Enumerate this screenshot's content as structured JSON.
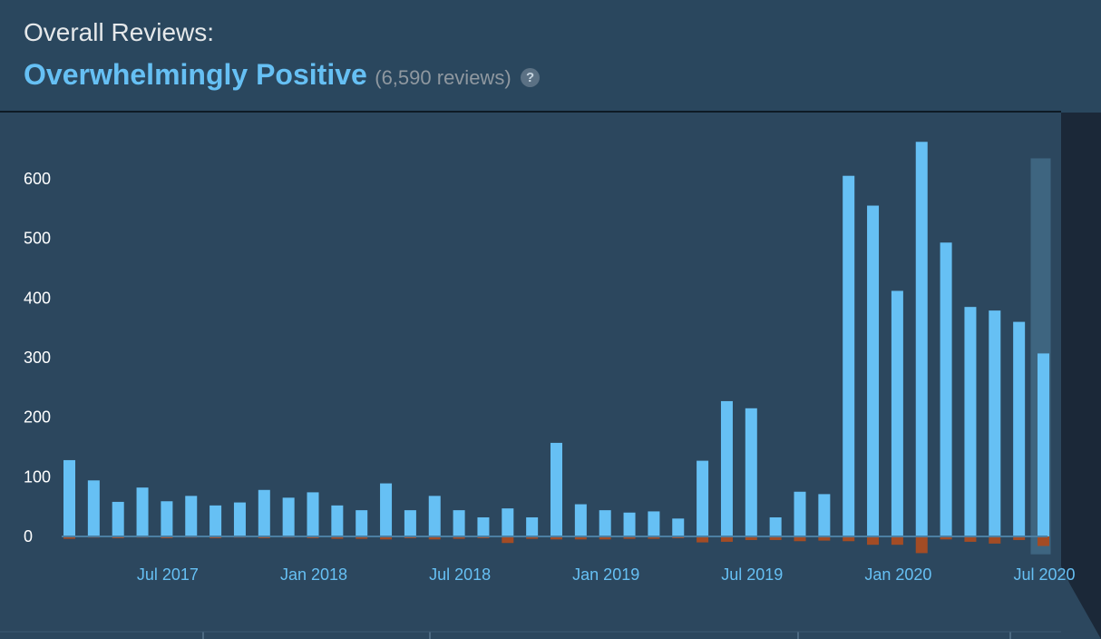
{
  "header": {
    "overall_label": "Overall Reviews:",
    "rating": "Overwhelmingly Positive",
    "count": "(6,590 reviews)",
    "help_icon": "?"
  },
  "colors": {
    "positive": "#66c0f4",
    "negative": "#a34c25",
    "highlight": "#3e6580",
    "baseline": "#4c7fa2"
  },
  "chart_data": {
    "type": "bar",
    "xlabel": "",
    "ylabel": "",
    "ylim": [
      -25,
      680
    ],
    "yticks": [
      0,
      100,
      200,
      300,
      400,
      500,
      600
    ],
    "x_tick_labels": [
      {
        "label": "Jul 2017",
        "index": 4
      },
      {
        "label": "Jan 2018",
        "index": 10
      },
      {
        "label": "Jul 2018",
        "index": 16
      },
      {
        "label": "Jan 2019",
        "index": 22
      },
      {
        "label": "Jul 2019",
        "index": 28
      },
      {
        "label": "Jan 2020",
        "index": 34
      },
      {
        "label": "Jul 2020",
        "index": 40
      }
    ],
    "highlighted_index": 40,
    "series": [
      {
        "name": "positive",
        "values": [
          128,
          94,
          58,
          82,
          59,
          68,
          52,
          57,
          78,
          65,
          74,
          52,
          44,
          89,
          44,
          68,
          44,
          32,
          47,
          32,
          157,
          54,
          44,
          40,
          42,
          30,
          127,
          227,
          215,
          32,
          75,
          71,
          605,
          555,
          412,
          662,
          493,
          385,
          379,
          360,
          307
        ]
      },
      {
        "name": "negative",
        "values": [
          -4,
          -2,
          -3,
          -2,
          -3,
          -2,
          -3,
          -2,
          -3,
          -2,
          -3,
          -4,
          -4,
          -5,
          -3,
          -5,
          -4,
          -3,
          -11,
          -4,
          -5,
          -5,
          -5,
          -4,
          -4,
          -3,
          -10,
          -9,
          -6,
          -6,
          -8,
          -7,
          -8,
          -14,
          -14,
          -28,
          -5,
          -9,
          -12,
          -6,
          -16
        ]
      }
    ]
  }
}
